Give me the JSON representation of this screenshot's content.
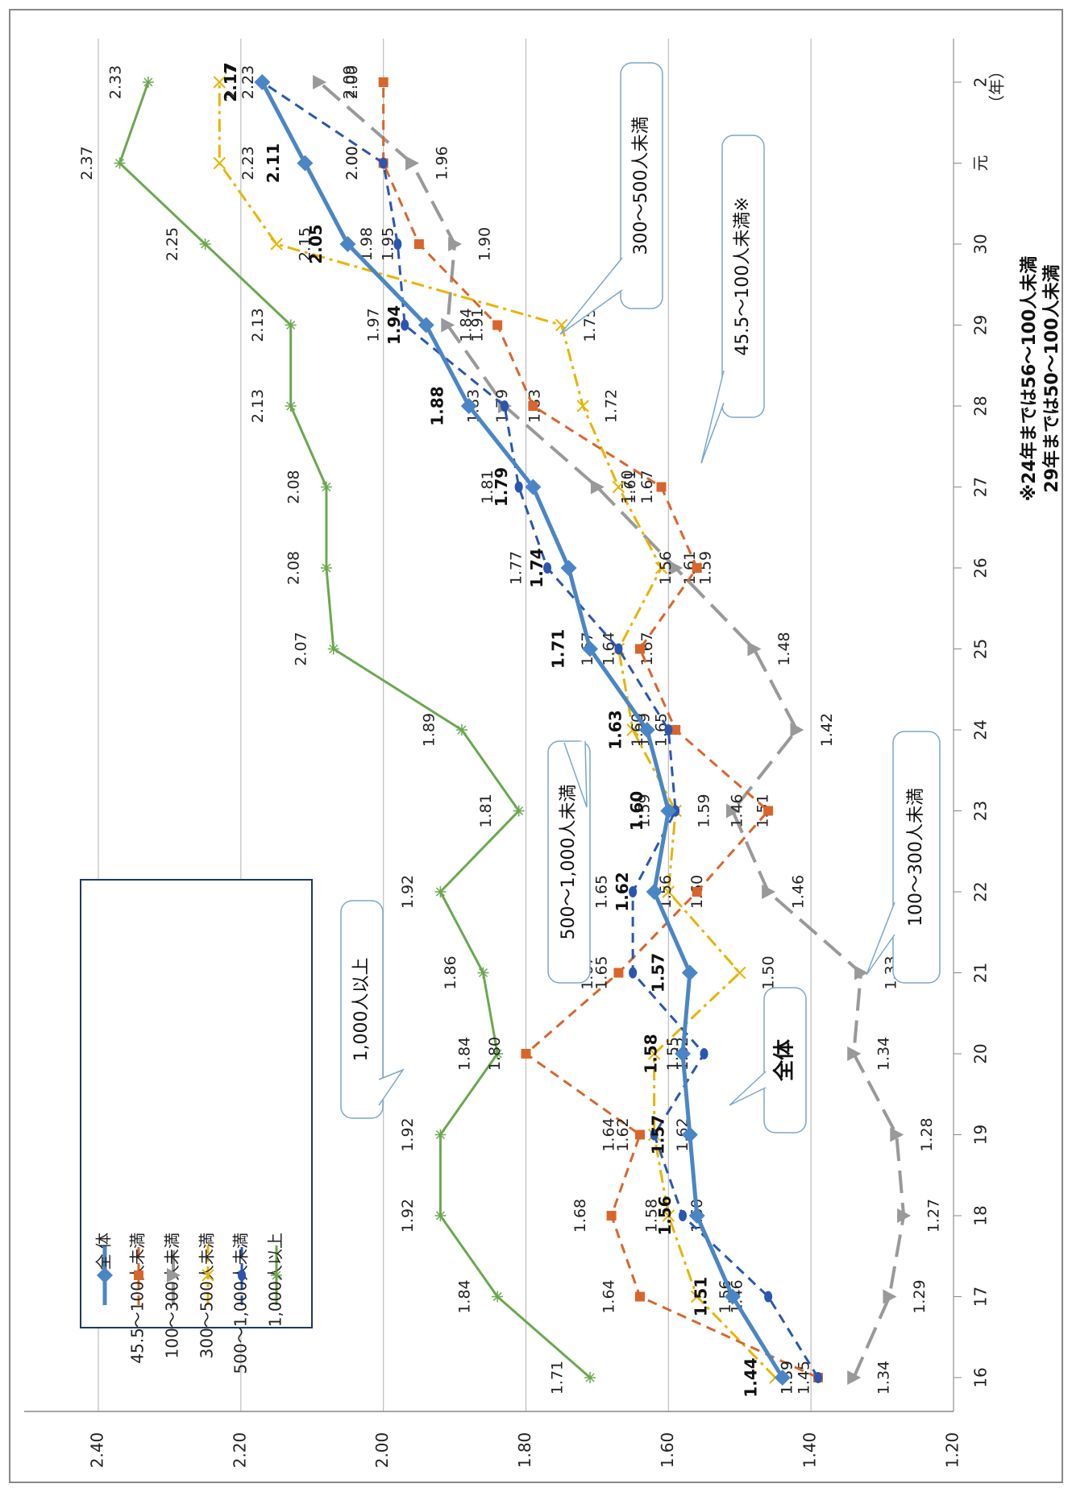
{
  "chart_data": {
    "type": "line",
    "x": [
      "16",
      "17",
      "18",
      "19",
      "20",
      "21",
      "22",
      "23",
      "24",
      "25",
      "26",
      "27",
      "28",
      "29",
      "30",
      "元",
      "2"
    ],
    "x_unit": "（年）",
    "ylim": [
      1.2,
      2.4
    ],
    "y_ticks": [
      "1.20",
      "1.40",
      "1.60",
      "1.80",
      "2.00",
      "2.20",
      "2.40"
    ],
    "grid": true,
    "legend_position": "top-left",
    "series": [
      {
        "name": "全 体",
        "key": "total",
        "color": "#4a86c5",
        "dash": "",
        "width": 5,
        "marker": "diamond",
        "values": [
          1.44,
          1.51,
          1.56,
          1.57,
          1.58,
          1.57,
          1.62,
          1.6,
          1.63,
          1.71,
          1.74,
          1.79,
          1.88,
          1.94,
          2.05,
          2.11,
          2.17
        ],
        "labels": [
          "1.44",
          "1.51",
          "1.56",
          "1.57",
          "1.58",
          "1.57",
          "1.62",
          "1.60",
          "1.63",
          "1.71",
          "1.74",
          "1.79",
          "1.88",
          "1.94",
          "2.05",
          "2.11",
          "2.17"
        ]
      },
      {
        "name": "45.5～100人未満",
        "key": "s45",
        "color": "#d9652b",
        "dash": "12,8",
        "width": 3,
        "marker": "square",
        "values": [
          1.39,
          1.64,
          1.68,
          1.64,
          1.8,
          1.67,
          1.56,
          1.46,
          1.59,
          1.64,
          1.56,
          1.61,
          1.79,
          1.84,
          1.95,
          2.0,
          2.0
        ],
        "labels": [
          "1.39",
          "1.64",
          "1.68",
          "1.64",
          "1.80",
          "1.67",
          "1.56",
          "1.46",
          "1.59",
          "1.64",
          "1.56",
          "1.61",
          "1.79",
          "1.84",
          "1.95",
          "2.00",
          "2.00"
        ]
      },
      {
        "name": "100～300人未満",
        "key": "s100",
        "color": "#999999",
        "dash": "28,12",
        "width": 4,
        "marker": "triangle",
        "values": [
          1.34,
          1.29,
          1.27,
          1.28,
          1.34,
          1.33,
          1.46,
          1.51,
          1.42,
          1.48,
          1.59,
          1.7,
          1.83,
          1.91,
          1.9,
          1.96,
          2.09
        ],
        "labels": [
          "1.34",
          "1.29",
          "1.27",
          "1.28",
          "1.34",
          "1.33",
          "1.46",
          "1.51",
          "1.42",
          "1.48",
          "1.59",
          "1.70",
          "1.83",
          "1.91",
          "1.90",
          "1.96",
          "2.09"
        ]
      },
      {
        "name": "300～500人未満",
        "key": "s300",
        "color": "#e8b400",
        "dash": "16,6,4,6",
        "width": 3,
        "marker": "x",
        "values": [
          1.45,
          1.56,
          1.6,
          1.62,
          1.62,
          1.5,
          1.6,
          1.59,
          1.65,
          1.67,
          1.61,
          1.67,
          1.72,
          1.75,
          2.15,
          2.23,
          2.23
        ],
        "labels": [
          "1.45",
          "1.56",
          "1.60",
          "1.62",
          "1.62",
          "1.50",
          "1.60",
          "1.59",
          "1.65",
          "1.67",
          "1.61",
          "1.67",
          "1.72",
          "1.75",
          "2.15",
          "2.23",
          "2.23"
        ]
      },
      {
        "name": "500～1,000人未満",
        "key": "s500",
        "color": "#2a56b0",
        "dash": "12,8",
        "width": 3,
        "marker": "circle",
        "values": [
          1.39,
          1.46,
          1.58,
          1.62,
          1.55,
          1.65,
          1.65,
          1.59,
          1.6,
          1.67,
          1.77,
          1.81,
          1.83,
          1.97,
          1.98,
          2.0,
          2.17
        ],
        "labels": [
          "1.39",
          "1.46",
          "1.58",
          "1.62",
          "1.55",
          "1.65",
          "1.65",
          "1.59",
          "1.60",
          "1.67",
          "1.77",
          "1.81",
          "1.83",
          "1.97",
          "1.98",
          "2.00",
          "2.17"
        ]
      },
      {
        "name": "1,000人以上",
        "key": "s1000",
        "color": "#6aa84f",
        "dash": "",
        "width": 3,
        "marker": "star",
        "values": [
          1.71,
          1.84,
          1.92,
          1.92,
          1.84,
          1.86,
          1.92,
          1.81,
          1.89,
          2.07,
          2.08,
          2.08,
          2.13,
          2.13,
          2.25,
          2.37,
          2.33
        ],
        "labels": [
          "1.71",
          "1.84",
          "1.92",
          "1.92",
          "1.84",
          "1.86",
          "1.92",
          "1.81",
          "1.89",
          "2.07",
          "2.08",
          "2.08",
          "2.13",
          "2.13",
          "2.25",
          "2.37",
          "2.33"
        ]
      }
    ],
    "callouts": {
      "total": "全体",
      "s45": "45.5～100人未満※",
      "s100": "100～300人未満",
      "s300": "300～500人未満",
      "s500": "500～1,000人未満",
      "s1000": "1,000人以上"
    },
    "notes": [
      "※24年までは56～100人未満",
      "29年までは50～100人未満"
    ]
  }
}
